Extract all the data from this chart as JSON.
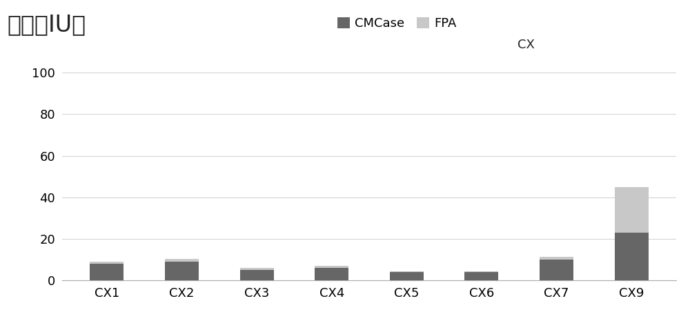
{
  "categories": [
    "CX1",
    "CX2",
    "CX3",
    "CX4",
    "CX5",
    "CX6",
    "CX7",
    "CX9"
  ],
  "cmcase": [
    8.0,
    9.0,
    5.0,
    6.0,
    4.0,
    4.0,
    10.0,
    23.0
  ],
  "fpa": [
    1.0,
    1.5,
    1.0,
    1.0,
    0.5,
    0.5,
    1.5,
    22.0
  ],
  "cmcase_color": "#666666",
  "fpa_color": "#c8c8c8",
  "ylabel": "醂活（IU）",
  "legend_labels": [
    "CMCase",
    "FPA",
    "CX"
  ],
  "ylim": [
    0,
    100
  ],
  "yticks": [
    0,
    20,
    40,
    60,
    80,
    100
  ],
  "background_color": "#ffffff",
  "grid_color": "#d5d5d5",
  "bar_width": 0.45,
  "title_fontsize": 24,
  "tick_fontsize": 13,
  "legend_fontsize": 13
}
